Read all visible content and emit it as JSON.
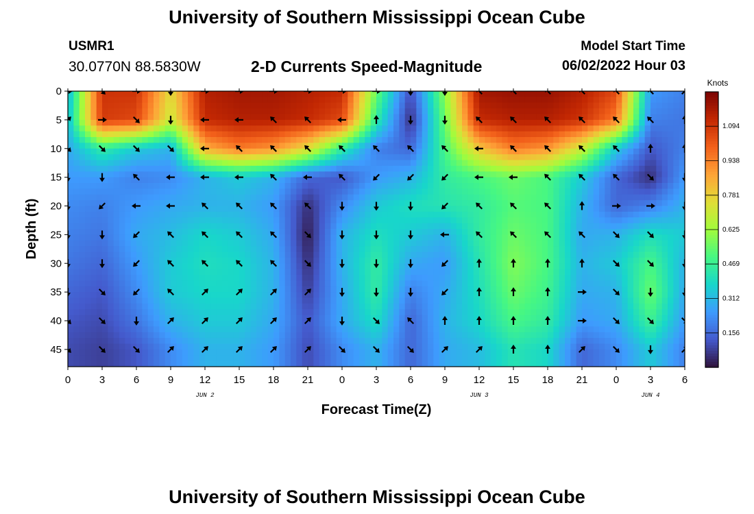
{
  "header": {
    "title": "University of Southern Mississippi Ocean Cube",
    "station_id": "USMR1",
    "coords": "30.0770N  88.5830W",
    "subtitle": "2-D Currents Speed-Magnitude",
    "model_start_label": "Model Start Time",
    "model_start_value": "06/02/2022 Hour 03"
  },
  "footer": {
    "title": "University of Southern Mississippi Ocean Cube"
  },
  "chart_data": {
    "type": "heatmap",
    "xlabel": "Forecast Time(Z)",
    "ylabel": "Depth (ft)",
    "x_tick_labels": [
      "0",
      "3",
      "6",
      "9",
      "12",
      "15",
      "18",
      "21",
      "0",
      "3",
      "6",
      "9",
      "12",
      "15",
      "18",
      "21",
      "0",
      "3",
      "6"
    ],
    "date_labels": [
      {
        "label": "JUN 2",
        "tick_index": 4
      },
      {
        "label": "JUN 3",
        "tick_index": 12
      },
      {
        "label": "JUN 4",
        "tick_index": 17
      }
    ],
    "y_ticks": [
      0,
      5,
      10,
      15,
      20,
      25,
      30,
      35,
      40,
      45
    ],
    "ylim": [
      0,
      48
    ],
    "x_hours_range": [
      0,
      54
    ],
    "colorbar": {
      "unit_label": "Knots",
      "ticks": [
        0.156,
        0.312,
        0.469,
        0.625,
        0.781,
        0.938,
        1.094
      ],
      "range": [
        0,
        1.25
      ],
      "colormap": "turbo"
    },
    "depth_rows": [
      0,
      5,
      10,
      15,
      20,
      25,
      30,
      35,
      40,
      45
    ],
    "time_cols_hours": [
      0,
      3,
      6,
      9,
      12,
      15,
      18,
      21,
      24,
      27,
      30,
      33,
      36,
      39,
      42,
      45,
      48,
      51,
      54
    ],
    "speed_knots": [
      [
        0.3,
        1.1,
        1.1,
        0.75,
        1.15,
        1.18,
        1.18,
        1.15,
        1.12,
        0.55,
        0.1,
        0.6,
        1.18,
        1.2,
        1.2,
        1.15,
        1.05,
        0.25,
        0.2
      ],
      [
        0.32,
        1.08,
        1.05,
        0.7,
        1.12,
        1.15,
        1.15,
        1.12,
        1.05,
        0.45,
        0.05,
        0.55,
        1.12,
        1.15,
        1.15,
        1.1,
        0.95,
        0.2,
        0.18
      ],
      [
        0.28,
        0.45,
        0.35,
        0.3,
        0.85,
        0.95,
        0.9,
        0.75,
        0.45,
        0.2,
        0.15,
        0.5,
        0.8,
        0.95,
        0.9,
        0.7,
        0.35,
        0.12,
        0.2
      ],
      [
        0.25,
        0.25,
        0.2,
        0.22,
        0.3,
        0.35,
        0.3,
        0.15,
        0.12,
        0.25,
        0.3,
        0.45,
        0.5,
        0.55,
        0.5,
        0.35,
        0.15,
        0.05,
        0.25
      ],
      [
        0.22,
        0.2,
        0.25,
        0.28,
        0.3,
        0.3,
        0.25,
        0.05,
        0.22,
        0.35,
        0.4,
        0.42,
        0.45,
        0.52,
        0.5,
        0.3,
        0.15,
        0.2,
        0.3
      ],
      [
        0.2,
        0.18,
        0.28,
        0.32,
        0.38,
        0.35,
        0.28,
        0.02,
        0.3,
        0.4,
        0.35,
        0.3,
        0.45,
        0.55,
        0.5,
        0.28,
        0.3,
        0.4,
        0.35
      ],
      [
        0.18,
        0.15,
        0.25,
        0.35,
        0.4,
        0.38,
        0.3,
        0.05,
        0.3,
        0.45,
        0.28,
        0.25,
        0.42,
        0.58,
        0.5,
        0.3,
        0.35,
        0.5,
        0.3
      ],
      [
        0.15,
        0.12,
        0.22,
        0.35,
        0.38,
        0.38,
        0.3,
        0.08,
        0.28,
        0.45,
        0.2,
        0.28,
        0.4,
        0.55,
        0.48,
        0.28,
        0.3,
        0.55,
        0.28
      ],
      [
        0.12,
        0.1,
        0.18,
        0.3,
        0.35,
        0.35,
        0.28,
        0.12,
        0.28,
        0.4,
        0.15,
        0.3,
        0.38,
        0.5,
        0.45,
        0.25,
        0.28,
        0.48,
        0.25
      ],
      [
        0.1,
        0.08,
        0.12,
        0.22,
        0.3,
        0.3,
        0.25,
        0.1,
        0.22,
        0.3,
        0.15,
        0.28,
        0.32,
        0.42,
        0.38,
        0.15,
        0.22,
        0.35,
        0.2
      ]
    ],
    "direction_deg_compass": [
      [
        90,
        135,
        90,
        180,
        90,
        90,
        90,
        90,
        90,
        90,
        180,
        180,
        315,
        315,
        315,
        315,
        315,
        315,
        45
      ],
      [
        45,
        90,
        135,
        180,
        270,
        270,
        315,
        315,
        270,
        0,
        180,
        180,
        315,
        315,
        315,
        315,
        315,
        315,
        0
      ],
      [
        135,
        135,
        135,
        135,
        270,
        315,
        315,
        315,
        315,
        315,
        315,
        315,
        270,
        315,
        315,
        315,
        315,
        0,
        0
      ],
      [
        180,
        180,
        315,
        270,
        270,
        270,
        315,
        270,
        315,
        225,
        225,
        225,
        270,
        270,
        315,
        315,
        315,
        135,
        180
      ],
      [
        180,
        225,
        270,
        270,
        315,
        315,
        315,
        315,
        180,
        180,
        180,
        225,
        315,
        315,
        315,
        0,
        90,
        90,
        180
      ],
      [
        180,
        180,
        225,
        315,
        315,
        315,
        315,
        135,
        180,
        180,
        180,
        270,
        315,
        315,
        315,
        315,
        135,
        135,
        180
      ],
      [
        180,
        180,
        225,
        315,
        315,
        315,
        315,
        135,
        180,
        180,
        180,
        225,
        0,
        0,
        0,
        0,
        135,
        135,
        180
      ],
      [
        180,
        135,
        225,
        315,
        45,
        45,
        45,
        45,
        180,
        180,
        180,
        225,
        0,
        0,
        0,
        90,
        135,
        180,
        180
      ],
      [
        135,
        135,
        180,
        45,
        45,
        45,
        45,
        45,
        180,
        135,
        315,
        0,
        0,
        0,
        0,
        90,
        135,
        135,
        135
      ],
      [
        135,
        135,
        135,
        45,
        45,
        45,
        45,
        45,
        135,
        135,
        135,
        45,
        45,
        0,
        0,
        45,
        135,
        180,
        45
      ]
    ]
  }
}
